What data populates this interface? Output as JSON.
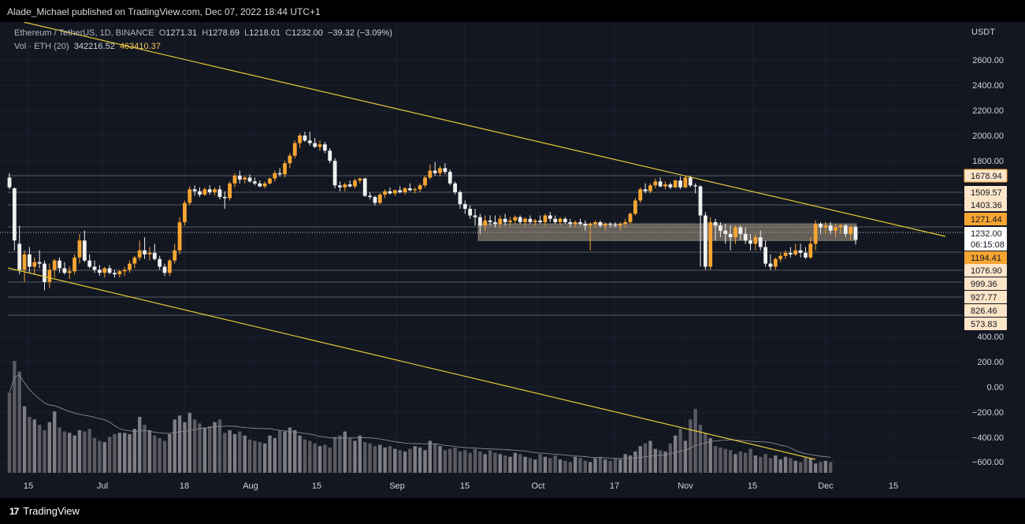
{
  "header": {
    "published_text": "Alade_Michael published on TradingView.com, Dec 07, 2022 18:44 UTC+1"
  },
  "legend": {
    "symbol": "Ethereum / TetherUS, 1D, BINANCE",
    "open_label": "O",
    "open": "1271.31",
    "high_label": "H",
    "high": "1278.69",
    "low_label": "L",
    "low": "1218.01",
    "close_label": "C",
    "close": "1232.00",
    "change": "−39.32 (−3.09%)",
    "vol_label": "Vol · ETH (20)",
    "vol_value": "342216.52",
    "vol_ma": "463410.37"
  },
  "footer": {
    "brand": "TradingView"
  },
  "chart_data": {
    "type": "candlestick",
    "symbol": "ETHUSDT",
    "interval": "1D",
    "exchange": "BINANCE",
    "currency_label": "USDT",
    "y_axis_ticks": [
      "2600.00",
      "2400.00",
      "2200.00",
      "2000.00",
      "1800.00",
      "400.00",
      "200.00",
      "0.00",
      "−200.00",
      "−400.00",
      "−600.00"
    ],
    "x_axis_ticks": [
      "15",
      "Jul",
      "18",
      "Aug",
      "15",
      "Sep",
      "15",
      "Oct",
      "17",
      "Nov",
      "15",
      "Dec",
      "15"
    ],
    "price_labels": [
      {
        "text": "1678.94",
        "style": "outline"
      },
      {
        "text": "1509.57",
        "style": "light"
      },
      {
        "text": "1403.36",
        "style": "light"
      },
      {
        "text": "1271.44",
        "style": "orange"
      },
      {
        "text": "1232.00",
        "style": "white"
      },
      {
        "text": "06:15:08",
        "style": "white"
      },
      {
        "text": "1194.41",
        "style": "orange"
      },
      {
        "text": "1076.90",
        "style": "light"
      },
      {
        "text": "999.36",
        "style": "light"
      },
      {
        "text": "927.77",
        "style": "light"
      },
      {
        "text": "826.46",
        "style": "light"
      },
      {
        "text": "573.83",
        "style": "light"
      }
    ],
    "horizontal_levels": [
      1678.94,
      1509.57,
      1403.36,
      1271.44,
      1194.41,
      1076.9,
      999.36,
      927.77,
      826.46
    ],
    "support_zone": [
      1230,
      1290
    ],
    "trendlines": [
      "descending channel upper",
      "descending channel lower"
    ],
    "candles": [
      {
        "o": 1660,
        "h": 1700,
        "l": 1540,
        "c": 1560
      },
      {
        "o": 1550,
        "h": 1560,
        "l": 1200,
        "c": 1230
      },
      {
        "o": 1220,
        "h": 1280,
        "l": 1050,
        "c": 1080
      },
      {
        "o": 1080,
        "h": 1200,
        "l": 1000,
        "c": 1180
      },
      {
        "o": 1180,
        "h": 1210,
        "l": 1060,
        "c": 1100
      },
      {
        "o": 1100,
        "h": 1160,
        "l": 1050,
        "c": 1130
      },
      {
        "o": 1130,
        "h": 1200,
        "l": 1090,
        "c": 1120
      },
      {
        "o": 1120,
        "h": 1140,
        "l": 960,
        "c": 1000
      },
      {
        "o": 1000,
        "h": 1120,
        "l": 970,
        "c": 1080
      },
      {
        "o": 1080,
        "h": 1150,
        "l": 1030,
        "c": 1140
      },
      {
        "o": 1140,
        "h": 1160,
        "l": 1060,
        "c": 1090
      },
      {
        "o": 1090,
        "h": 1130,
        "l": 1050,
        "c": 1060
      },
      {
        "o": 1060,
        "h": 1100,
        "l": 1020,
        "c": 1070
      },
      {
        "o": 1070,
        "h": 1180,
        "l": 1050,
        "c": 1160
      },
      {
        "o": 1160,
        "h": 1250,
        "l": 1120,
        "c": 1230
      },
      {
        "o": 1230,
        "h": 1260,
        "l": 1130,
        "c": 1140
      },
      {
        "o": 1140,
        "h": 1180,
        "l": 1090,
        "c": 1100
      },
      {
        "o": 1100,
        "h": 1140,
        "l": 1060,
        "c": 1080
      },
      {
        "o": 1080,
        "h": 1110,
        "l": 1040,
        "c": 1060
      },
      {
        "o": 1060,
        "h": 1100,
        "l": 1030,
        "c": 1090
      },
      {
        "o": 1090,
        "h": 1110,
        "l": 1050,
        "c": 1060
      },
      {
        "o": 1060,
        "h": 1080,
        "l": 1030,
        "c": 1050
      },
      {
        "o": 1050,
        "h": 1080,
        "l": 1030,
        "c": 1070
      },
      {
        "o": 1070,
        "h": 1100,
        "l": 1040,
        "c": 1080
      },
      {
        "o": 1080,
        "h": 1140,
        "l": 1060,
        "c": 1120
      },
      {
        "o": 1120,
        "h": 1170,
        "l": 1090,
        "c": 1160
      },
      {
        "o": 1160,
        "h": 1230,
        "l": 1140,
        "c": 1200
      },
      {
        "o": 1200,
        "h": 1240,
        "l": 1150,
        "c": 1180
      },
      {
        "o": 1180,
        "h": 1210,
        "l": 1140,
        "c": 1190
      },
      {
        "o": 1190,
        "h": 1220,
        "l": 1140,
        "c": 1150
      },
      {
        "o": 1150,
        "h": 1170,
        "l": 1080,
        "c": 1100
      },
      {
        "o": 1100,
        "h": 1120,
        "l": 1040,
        "c": 1060
      },
      {
        "o": 1060,
        "h": 1150,
        "l": 1040,
        "c": 1140
      },
      {
        "o": 1140,
        "h": 1220,
        "l": 1120,
        "c": 1200
      },
      {
        "o": 1200,
        "h": 1330,
        "l": 1180,
        "c": 1300
      },
      {
        "o": 1300,
        "h": 1440,
        "l": 1280,
        "c": 1420
      },
      {
        "o": 1420,
        "h": 1570,
        "l": 1400,
        "c": 1540
      },
      {
        "o": 1540,
        "h": 1580,
        "l": 1480,
        "c": 1520
      },
      {
        "o": 1520,
        "h": 1560,
        "l": 1470,
        "c": 1490
      },
      {
        "o": 1490,
        "h": 1560,
        "l": 1480,
        "c": 1540
      },
      {
        "o": 1540,
        "h": 1580,
        "l": 1490,
        "c": 1510
      },
      {
        "o": 1510,
        "h": 1560,
        "l": 1480,
        "c": 1540
      },
      {
        "o": 1540,
        "h": 1580,
        "l": 1450,
        "c": 1470
      },
      {
        "o": 1470,
        "h": 1520,
        "l": 1380,
        "c": 1460
      },
      {
        "o": 1460,
        "h": 1620,
        "l": 1440,
        "c": 1600
      },
      {
        "o": 1600,
        "h": 1700,
        "l": 1560,
        "c": 1680
      },
      {
        "o": 1680,
        "h": 1720,
        "l": 1600,
        "c": 1640
      },
      {
        "o": 1640,
        "h": 1680,
        "l": 1600,
        "c": 1660
      },
      {
        "o": 1660,
        "h": 1690,
        "l": 1610,
        "c": 1620
      },
      {
        "o": 1620,
        "h": 1660,
        "l": 1580,
        "c": 1600
      },
      {
        "o": 1600,
        "h": 1630,
        "l": 1560,
        "c": 1570
      },
      {
        "o": 1570,
        "h": 1620,
        "l": 1550,
        "c": 1600
      },
      {
        "o": 1600,
        "h": 1660,
        "l": 1590,
        "c": 1650
      },
      {
        "o": 1650,
        "h": 1720,
        "l": 1620,
        "c": 1700
      },
      {
        "o": 1700,
        "h": 1740,
        "l": 1670,
        "c": 1690
      },
      {
        "o": 1690,
        "h": 1800,
        "l": 1660,
        "c": 1780
      },
      {
        "o": 1780,
        "h": 1860,
        "l": 1740,
        "c": 1840
      },
      {
        "o": 1840,
        "h": 1960,
        "l": 1820,
        "c": 1940
      },
      {
        "o": 1940,
        "h": 2020,
        "l": 1900,
        "c": 2000
      },
      {
        "o": 2000,
        "h": 2030,
        "l": 1950,
        "c": 1960
      },
      {
        "o": 1960,
        "h": 2030,
        "l": 1920,
        "c": 1940
      },
      {
        "o": 1940,
        "h": 1980,
        "l": 1900,
        "c": 1910
      },
      {
        "o": 1910,
        "h": 1960,
        "l": 1880,
        "c": 1930
      },
      {
        "o": 1930,
        "h": 1950,
        "l": 1860,
        "c": 1880
      },
      {
        "o": 1880,
        "h": 1900,
        "l": 1780,
        "c": 1800
      },
      {
        "o": 1800,
        "h": 1820,
        "l": 1550,
        "c": 1580
      },
      {
        "o": 1580,
        "h": 1620,
        "l": 1520,
        "c": 1560
      },
      {
        "o": 1560,
        "h": 1610,
        "l": 1520,
        "c": 1590
      },
      {
        "o": 1590,
        "h": 1630,
        "l": 1560,
        "c": 1570
      },
      {
        "o": 1570,
        "h": 1650,
        "l": 1550,
        "c": 1630
      },
      {
        "o": 1630,
        "h": 1660,
        "l": 1600,
        "c": 1650
      },
      {
        "o": 1650,
        "h": 1660,
        "l": 1470,
        "c": 1480
      },
      {
        "o": 1480,
        "h": 1510,
        "l": 1450,
        "c": 1470
      },
      {
        "o": 1470,
        "h": 1480,
        "l": 1400,
        "c": 1420
      },
      {
        "o": 1420,
        "h": 1500,
        "l": 1410,
        "c": 1490
      },
      {
        "o": 1490,
        "h": 1540,
        "l": 1460,
        "c": 1520
      },
      {
        "o": 1520,
        "h": 1560,
        "l": 1490,
        "c": 1500
      },
      {
        "o": 1500,
        "h": 1540,
        "l": 1480,
        "c": 1530
      },
      {
        "o": 1530,
        "h": 1570,
        "l": 1500,
        "c": 1510
      },
      {
        "o": 1510,
        "h": 1560,
        "l": 1490,
        "c": 1550
      },
      {
        "o": 1550,
        "h": 1600,
        "l": 1520,
        "c": 1530
      },
      {
        "o": 1530,
        "h": 1560,
        "l": 1500,
        "c": 1540
      },
      {
        "o": 1540,
        "h": 1600,
        "l": 1510,
        "c": 1580
      },
      {
        "o": 1580,
        "h": 1680,
        "l": 1560,
        "c": 1660
      },
      {
        "o": 1660,
        "h": 1770,
        "l": 1640,
        "c": 1720
      },
      {
        "o": 1720,
        "h": 1790,
        "l": 1680,
        "c": 1700
      },
      {
        "o": 1700,
        "h": 1760,
        "l": 1670,
        "c": 1740
      },
      {
        "o": 1740,
        "h": 1780,
        "l": 1690,
        "c": 1710
      },
      {
        "o": 1710,
        "h": 1730,
        "l": 1580,
        "c": 1600
      },
      {
        "o": 1600,
        "h": 1620,
        "l": 1490,
        "c": 1510
      },
      {
        "o": 1510,
        "h": 1530,
        "l": 1380,
        "c": 1410
      },
      {
        "o": 1410,
        "h": 1440,
        "l": 1350,
        "c": 1380
      },
      {
        "o": 1380,
        "h": 1400,
        "l": 1320,
        "c": 1340
      },
      {
        "o": 1340,
        "h": 1380,
        "l": 1280,
        "c": 1330
      },
      {
        "o": 1330,
        "h": 1350,
        "l": 1250,
        "c": 1280
      },
      {
        "o": 1280,
        "h": 1340,
        "l": 1260,
        "c": 1310
      },
      {
        "o": 1310,
        "h": 1340,
        "l": 1280,
        "c": 1300
      },
      {
        "o": 1300,
        "h": 1340,
        "l": 1270,
        "c": 1290
      },
      {
        "o": 1290,
        "h": 1340,
        "l": 1270,
        "c": 1320
      },
      {
        "o": 1320,
        "h": 1350,
        "l": 1280,
        "c": 1300
      },
      {
        "o": 1300,
        "h": 1330,
        "l": 1280,
        "c": 1310
      },
      {
        "o": 1310,
        "h": 1340,
        "l": 1290,
        "c": 1330
      },
      {
        "o": 1330,
        "h": 1340,
        "l": 1290,
        "c": 1300
      },
      {
        "o": 1300,
        "h": 1330,
        "l": 1280,
        "c": 1320
      },
      {
        "o": 1320,
        "h": 1340,
        "l": 1290,
        "c": 1300
      },
      {
        "o": 1300,
        "h": 1320,
        "l": 1280,
        "c": 1310
      },
      {
        "o": 1310,
        "h": 1340,
        "l": 1290,
        "c": 1300
      },
      {
        "o": 1300,
        "h": 1350,
        "l": 1280,
        "c": 1340
      },
      {
        "o": 1340,
        "h": 1360,
        "l": 1300,
        "c": 1320
      },
      {
        "o": 1320,
        "h": 1340,
        "l": 1290,
        "c": 1300
      },
      {
        "o": 1300,
        "h": 1330,
        "l": 1280,
        "c": 1320
      },
      {
        "o": 1320,
        "h": 1330,
        "l": 1290,
        "c": 1300
      },
      {
        "o": 1300,
        "h": 1320,
        "l": 1270,
        "c": 1290
      },
      {
        "o": 1290,
        "h": 1310,
        "l": 1270,
        "c": 1300
      },
      {
        "o": 1300,
        "h": 1320,
        "l": 1280,
        "c": 1290
      },
      {
        "o": 1290,
        "h": 1310,
        "l": 1260,
        "c": 1280
      },
      {
        "o": 1280,
        "h": 1300,
        "l": 1200,
        "c": 1290
      },
      {
        "o": 1290,
        "h": 1310,
        "l": 1270,
        "c": 1300
      },
      {
        "o": 1300,
        "h": 1310,
        "l": 1270,
        "c": 1280
      },
      {
        "o": 1280,
        "h": 1300,
        "l": 1260,
        "c": 1290
      },
      {
        "o": 1290,
        "h": 1300,
        "l": 1270,
        "c": 1285
      },
      {
        "o": 1285,
        "h": 1300,
        "l": 1270,
        "c": 1280
      },
      {
        "o": 1280,
        "h": 1300,
        "l": 1260,
        "c": 1290
      },
      {
        "o": 1290,
        "h": 1320,
        "l": 1270,
        "c": 1300
      },
      {
        "o": 1300,
        "h": 1360,
        "l": 1290,
        "c": 1350
      },
      {
        "o": 1350,
        "h": 1460,
        "l": 1340,
        "c": 1440
      },
      {
        "o": 1440,
        "h": 1560,
        "l": 1420,
        "c": 1540
      },
      {
        "o": 1540,
        "h": 1600,
        "l": 1500,
        "c": 1520
      },
      {
        "o": 1520,
        "h": 1600,
        "l": 1500,
        "c": 1580
      },
      {
        "o": 1580,
        "h": 1650,
        "l": 1550,
        "c": 1620
      },
      {
        "o": 1620,
        "h": 1660,
        "l": 1560,
        "c": 1570
      },
      {
        "o": 1570,
        "h": 1620,
        "l": 1540,
        "c": 1590
      },
      {
        "o": 1590,
        "h": 1610,
        "l": 1540,
        "c": 1560
      },
      {
        "o": 1560,
        "h": 1640,
        "l": 1550,
        "c": 1630
      },
      {
        "o": 1630,
        "h": 1670,
        "l": 1540,
        "c": 1560
      },
      {
        "o": 1560,
        "h": 1680,
        "l": 1550,
        "c": 1660
      },
      {
        "o": 1660,
        "h": 1680,
        "l": 1560,
        "c": 1580
      },
      {
        "o": 1580,
        "h": 1600,
        "l": 1500,
        "c": 1570
      },
      {
        "o": 1570,
        "h": 1580,
        "l": 1100,
        "c": 1340
      },
      {
        "o": 1340,
        "h": 1360,
        "l": 1080,
        "c": 1100
      },
      {
        "o": 1100,
        "h": 1330,
        "l": 1080,
        "c": 1300
      },
      {
        "o": 1300,
        "h": 1320,
        "l": 1230,
        "c": 1280
      },
      {
        "o": 1280,
        "h": 1300,
        "l": 1240,
        "c": 1260
      },
      {
        "o": 1260,
        "h": 1290,
        "l": 1220,
        "c": 1250
      },
      {
        "o": 1250,
        "h": 1280,
        "l": 1200,
        "c": 1240
      },
      {
        "o": 1240,
        "h": 1280,
        "l": 1220,
        "c": 1270
      },
      {
        "o": 1270,
        "h": 1280,
        "l": 1230,
        "c": 1250
      },
      {
        "o": 1250,
        "h": 1270,
        "l": 1220,
        "c": 1230
      },
      {
        "o": 1230,
        "h": 1250,
        "l": 1200,
        "c": 1220
      },
      {
        "o": 1220,
        "h": 1250,
        "l": 1200,
        "c": 1240
      },
      {
        "o": 1240,
        "h": 1260,
        "l": 1200,
        "c": 1210
      },
      {
        "o": 1210,
        "h": 1230,
        "l": 1100,
        "c": 1120
      },
      {
        "o": 1120,
        "h": 1180,
        "l": 1080,
        "c": 1100
      },
      {
        "o": 1100,
        "h": 1160,
        "l": 1080,
        "c": 1150
      },
      {
        "o": 1150,
        "h": 1190,
        "l": 1130,
        "c": 1170
      },
      {
        "o": 1170,
        "h": 1200,
        "l": 1150,
        "c": 1190
      },
      {
        "o": 1190,
        "h": 1210,
        "l": 1160,
        "c": 1180
      },
      {
        "o": 1180,
        "h": 1220,
        "l": 1170,
        "c": 1200
      },
      {
        "o": 1200,
        "h": 1220,
        "l": 1160,
        "c": 1190
      },
      {
        "o": 1190,
        "h": 1210,
        "l": 1150,
        "c": 1160
      },
      {
        "o": 1160,
        "h": 1240,
        "l": 1150,
        "c": 1220
      },
      {
        "o": 1220,
        "h": 1310,
        "l": 1200,
        "c": 1290
      },
      {
        "o": 1290,
        "h": 1300,
        "l": 1250,
        "c": 1270
      },
      {
        "o": 1270,
        "h": 1300,
        "l": 1250,
        "c": 1280
      },
      {
        "o": 1280,
        "h": 1300,
        "l": 1250,
        "c": 1260
      },
      {
        "o": 1260,
        "h": 1290,
        "l": 1240,
        "c": 1270
      },
      {
        "o": 1270,
        "h": 1290,
        "l": 1250,
        "c": 1280
      },
      {
        "o": 1280,
        "h": 1290,
        "l": 1240,
        "c": 1250
      },
      {
        "o": 1250,
        "h": 1280,
        "l": 1230,
        "c": 1271.31
      },
      {
        "o": 1271.31,
        "h": 1278.69,
        "l": 1218.01,
        "c": 1232.0
      }
    ],
    "volume": [
      300,
      420,
      380,
      250,
      210,
      200,
      180,
      160,
      190,
      230,
      170,
      155,
      150,
      140,
      160,
      155,
      165,
      130,
      120,
      115,
      135,
      145,
      150,
      150,
      145,
      165,
      210,
      180,
      160,
      140,
      130,
      120,
      145,
      200,
      215,
      190,
      225,
      200,
      185,
      170,
      175,
      190,
      200,
      150,
      160,
      145,
      155,
      140,
      125,
      120,
      115,
      110,
      140,
      130,
      160,
      155,
      170,
      160,
      140,
      125,
      120,
      110,
      100,
      105,
      95,
      135,
      140,
      155,
      130,
      120,
      140,
      115,
      110,
      100,
      105,
      95,
      100,
      90,
      85,
      80,
      90,
      100,
      95,
      85,
      120,
      110,
      100,
      85,
      90,
      95,
      80,
      85,
      75,
      90,
      80,
      70,
      85,
      75,
      70,
      65,
      60,
      75,
      70,
      60,
      55,
      50,
      70,
      60,
      55,
      65,
      50,
      45,
      40,
      60,
      55,
      45,
      40,
      55,
      60,
      50,
      45,
      55,
      50,
      70,
      65,
      80,
      100,
      110,
      120,
      90,
      85,
      80,
      110,
      140,
      165,
      120,
      200,
      240,
      180,
      150,
      130,
      100,
      95,
      90,
      85,
      70,
      80,
      75,
      90,
      65,
      60,
      70,
      55,
      65,
      50,
      60,
      55,
      45,
      40,
      60,
      55,
      35,
      40,
      45,
      40
    ]
  }
}
